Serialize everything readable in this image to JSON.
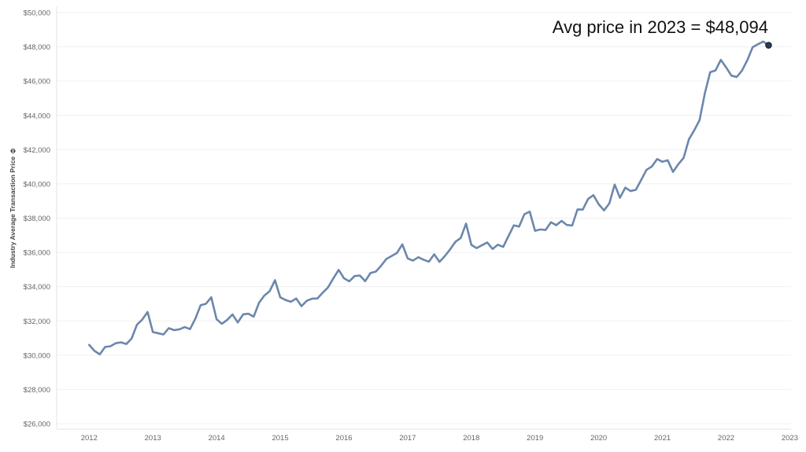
{
  "chart_data": {
    "type": "line",
    "ylabel": "Industry Average Transaction Price",
    "ylabel_icon": "sort-icon",
    "xlabel": "",
    "ylim": [
      26000,
      50000
    ],
    "y_ticks": [
      26000,
      28000,
      30000,
      32000,
      34000,
      36000,
      38000,
      40000,
      42000,
      44000,
      46000,
      48000,
      50000
    ],
    "y_tick_labels": [
      "$26,000",
      "$28,000",
      "$30,000",
      "$32,000",
      "$34,000",
      "$36,000",
      "$38,000",
      "$40,000",
      "$42,000",
      "$44,000",
      "$46,000",
      "$48,000",
      "$50,000"
    ],
    "x_ticks": [
      2012,
      2013,
      2014,
      2015,
      2016,
      2017,
      2018,
      2019,
      2020,
      2021,
      2022,
      2023
    ],
    "x_tick_labels": [
      "2012",
      "2013",
      "2014",
      "2015",
      "2016",
      "2017",
      "2018",
      "2019",
      "2020",
      "2021",
      "2022",
      "2023"
    ],
    "grid": true,
    "line_color": "#6b87ad",
    "marker_color": "#2b3a55",
    "annotation": "Avg price in 2023 = $48,094",
    "series": [
      {
        "values": [
          [
            2012.0,
            30600
          ],
          [
            2012.083,
            30250
          ],
          [
            2012.167,
            30050
          ],
          [
            2012.25,
            30480
          ],
          [
            2012.333,
            30520
          ],
          [
            2012.417,
            30700
          ],
          [
            2012.5,
            30750
          ],
          [
            2012.583,
            30650
          ],
          [
            2012.667,
            30980
          ],
          [
            2012.75,
            31780
          ],
          [
            2012.833,
            32080
          ],
          [
            2012.917,
            32520
          ],
          [
            2013.0,
            31350
          ],
          [
            2013.083,
            31280
          ],
          [
            2013.167,
            31210
          ],
          [
            2013.25,
            31580
          ],
          [
            2013.333,
            31460
          ],
          [
            2013.417,
            31510
          ],
          [
            2013.5,
            31640
          ],
          [
            2013.583,
            31520
          ],
          [
            2013.667,
            32130
          ],
          [
            2013.75,
            32920
          ],
          [
            2013.833,
            33000
          ],
          [
            2013.917,
            33380
          ],
          [
            2014.0,
            32100
          ],
          [
            2014.083,
            31830
          ],
          [
            2014.167,
            32060
          ],
          [
            2014.25,
            32380
          ],
          [
            2014.333,
            31910
          ],
          [
            2014.417,
            32380
          ],
          [
            2014.5,
            32420
          ],
          [
            2014.583,
            32250
          ],
          [
            2014.667,
            33060
          ],
          [
            2014.75,
            33480
          ],
          [
            2014.833,
            33730
          ],
          [
            2014.917,
            34380
          ],
          [
            2015.0,
            33380
          ],
          [
            2015.083,
            33220
          ],
          [
            2015.167,
            33120
          ],
          [
            2015.25,
            33310
          ],
          [
            2015.333,
            32860
          ],
          [
            2015.417,
            33180
          ],
          [
            2015.5,
            33300
          ],
          [
            2015.583,
            33310
          ],
          [
            2015.667,
            33650
          ],
          [
            2015.75,
            33960
          ],
          [
            2015.833,
            34480
          ],
          [
            2015.917,
            34980
          ],
          [
            2016.0,
            34490
          ],
          [
            2016.083,
            34310
          ],
          [
            2016.167,
            34620
          ],
          [
            2016.25,
            34650
          ],
          [
            2016.333,
            34320
          ],
          [
            2016.417,
            34800
          ],
          [
            2016.5,
            34880
          ],
          [
            2016.583,
            35220
          ],
          [
            2016.667,
            35620
          ],
          [
            2016.75,
            35790
          ],
          [
            2016.833,
            35970
          ],
          [
            2016.917,
            36470
          ],
          [
            2017.0,
            35650
          ],
          [
            2017.083,
            35520
          ],
          [
            2017.167,
            35720
          ],
          [
            2017.25,
            35570
          ],
          [
            2017.333,
            35460
          ],
          [
            2017.417,
            35890
          ],
          [
            2017.5,
            35450
          ],
          [
            2017.583,
            35780
          ],
          [
            2017.667,
            36180
          ],
          [
            2017.75,
            36620
          ],
          [
            2017.833,
            36840
          ],
          [
            2017.917,
            37680
          ],
          [
            2018.0,
            36440
          ],
          [
            2018.083,
            36250
          ],
          [
            2018.167,
            36420
          ],
          [
            2018.25,
            36580
          ],
          [
            2018.333,
            36200
          ],
          [
            2018.417,
            36450
          ],
          [
            2018.5,
            36320
          ],
          [
            2018.583,
            36950
          ],
          [
            2018.667,
            37580
          ],
          [
            2018.75,
            37510
          ],
          [
            2018.833,
            38230
          ],
          [
            2018.917,
            38380
          ],
          [
            2019.0,
            37260
          ],
          [
            2019.083,
            37340
          ],
          [
            2019.167,
            37310
          ],
          [
            2019.25,
            37760
          ],
          [
            2019.333,
            37590
          ],
          [
            2019.417,
            37840
          ],
          [
            2019.5,
            37600
          ],
          [
            2019.583,
            37570
          ],
          [
            2019.667,
            38510
          ],
          [
            2019.75,
            38500
          ],
          [
            2019.833,
            39120
          ],
          [
            2019.917,
            39340
          ],
          [
            2020.0,
            38810
          ],
          [
            2020.083,
            38450
          ],
          [
            2020.167,
            38860
          ],
          [
            2020.25,
            39960
          ],
          [
            2020.333,
            39190
          ],
          [
            2020.417,
            39780
          ],
          [
            2020.5,
            39580
          ],
          [
            2020.583,
            39660
          ],
          [
            2020.667,
            40230
          ],
          [
            2020.75,
            40820
          ],
          [
            2020.833,
            41010
          ],
          [
            2020.917,
            41450
          ],
          [
            2021.0,
            41290
          ],
          [
            2021.083,
            41380
          ],
          [
            2021.167,
            40700
          ],
          [
            2021.25,
            41150
          ],
          [
            2021.333,
            41520
          ],
          [
            2021.417,
            42610
          ],
          [
            2021.5,
            43130
          ],
          [
            2021.583,
            43720
          ],
          [
            2021.667,
            45300
          ],
          [
            2021.75,
            46520
          ],
          [
            2021.833,
            46620
          ],
          [
            2021.917,
            47240
          ],
          [
            2022.0,
            46800
          ],
          [
            2022.083,
            46320
          ],
          [
            2022.167,
            46240
          ],
          [
            2022.25,
            46620
          ],
          [
            2022.333,
            47220
          ],
          [
            2022.417,
            47980
          ],
          [
            2022.5,
            48150
          ],
          [
            2022.583,
            48310
          ],
          [
            2022.667,
            48094
          ]
        ]
      }
    ]
  }
}
